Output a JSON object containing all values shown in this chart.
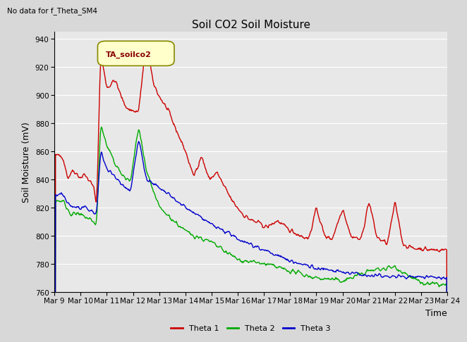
{
  "title": "Soil CO2 Soil Moisture",
  "no_data_text": "No data for f_Theta_SM4",
  "ylabel": "Soil Moisture (mV)",
  "xlabel": "Time",
  "ylim": [
    760,
    945
  ],
  "yticks": [
    760,
    780,
    800,
    820,
    840,
    860,
    880,
    900,
    920,
    940
  ],
  "xtick_labels": [
    "Mar 9",
    "Mar 10",
    "Mar 11",
    "Mar 12",
    "Mar 13",
    "Mar 14",
    "Mar 15",
    "Mar 16",
    "Mar 17",
    "Mar 18",
    "Mar 19",
    "Mar 20",
    "Mar 21",
    "Mar 22",
    "Mar 23",
    "Mar 24"
  ],
  "legend_label": "TA_soilco2",
  "legend_bg": "#ffffcc",
  "legend_border": "#888800",
  "series_colors": {
    "Theta 1": "#cc0000",
    "Theta 2": "#00aa00",
    "Theta 3": "#0000cc"
  },
  "bg_color": "#d8d8d8",
  "plot_bg": "#e8e8e8",
  "grid_color": "#ffffff",
  "title_fontsize": 11,
  "axis_label_fontsize": 9,
  "tick_fontsize": 7.5
}
